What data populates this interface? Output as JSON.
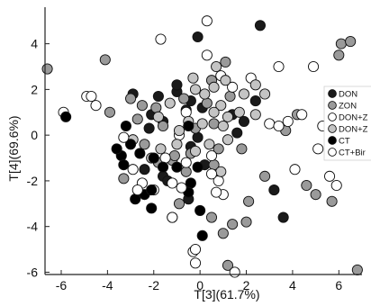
{
  "chart_data": {
    "type": "scatter",
    "xlabel": "T[3](61.7%)",
    "ylabel": "T[4](69.6%)",
    "xlim": [
      -6.7,
      7
    ],
    "ylim": [
      -6.1,
      5.6
    ],
    "xticks": [
      -6,
      -4,
      -2,
      0,
      2,
      4,
      6
    ],
    "yticks": [
      -6,
      -4,
      -2,
      0,
      2,
      4
    ],
    "grid": false,
    "legend_position": "right",
    "colors": {
      "DON": "#1a1a1a",
      "ZON": "#9a9a9a",
      "DON+Z_light": "#ffffff",
      "DON+Z_gray": "#c4c4c4",
      "CT": "#000000",
      "CT+Bir": "#ffffff"
    },
    "series": [
      {
        "name": "DON",
        "color": "#1a1a1a",
        "points": [
          [
            -2.9,
            1.8
          ],
          [
            -1.8,
            1.7
          ],
          [
            -0.4,
            1.5
          ],
          [
            -2.1,
            0.9
          ],
          [
            -1.6,
            0.6
          ],
          [
            -0.6,
            1.1
          ],
          [
            2.4,
            1.5
          ],
          [
            1.9,
            0.6
          ],
          [
            1.4,
            0.9
          ],
          [
            -1.0,
            1.9
          ],
          [
            -2.2,
            0.3
          ],
          [
            -0.1,
            4.3
          ],
          [
            -1.0,
            2.2
          ],
          [
            0.1,
            1.2
          ],
          [
            1.6,
            0.1
          ],
          [
            -0.1,
            -0.1
          ],
          [
            0.2,
            -1.3
          ],
          [
            -1.6,
            -1.8
          ],
          [
            -2.4,
            -1.5
          ],
          [
            -0.4,
            -0.5
          ],
          [
            3.2,
            -2.4
          ],
          [
            -1.4,
            -2.0
          ],
          [
            3.6,
            -3.6
          ],
          [
            -0.5,
            -2.8
          ],
          [
            2.6,
            4.8
          ]
        ]
      },
      {
        "name": "ZON",
        "color": "#9a9a9a",
        "points": [
          [
            -6.6,
            2.9
          ],
          [
            -4.1,
            3.3
          ],
          [
            -3.9,
            1.0
          ],
          [
            -3.0,
            1.6
          ],
          [
            -2.5,
            1.3
          ],
          [
            -1.9,
            1.2
          ],
          [
            -2.7,
            0.7
          ],
          [
            -1.6,
            0.4
          ],
          [
            -2.4,
            -0.4
          ],
          [
            -1.2,
            -1.1
          ],
          [
            0.3,
            1.4
          ],
          [
            0.5,
            2.4
          ],
          [
            1.3,
            1.7
          ],
          [
            1.1,
            3.2
          ],
          [
            0.6,
            0.5
          ],
          [
            -0.2,
            0.3
          ],
          [
            -0.7,
            1.6
          ],
          [
            1.8,
            -0.6
          ],
          [
            2.1,
            -2.9
          ],
          [
            4.2,
            0.9
          ],
          [
            4.6,
            -2.2
          ],
          [
            5.0,
            -2.6
          ],
          [
            5.7,
            -2.9
          ],
          [
            6.1,
            4.0
          ],
          [
            6.5,
            4.1
          ],
          [
            6.0,
            3.5
          ],
          [
            2.8,
            -1.8
          ],
          [
            0.5,
            -3.6
          ],
          [
            -0.6,
            -1.6
          ],
          [
            0.6,
            -1.3
          ],
          [
            -1.8,
            -1.2
          ],
          [
            -0.9,
            -3.0
          ],
          [
            -3.3,
            -1.9
          ],
          [
            -1.1,
            -0.9
          ],
          [
            -0.4,
            -0.8
          ],
          [
            0.8,
            -0.6
          ],
          [
            2.0,
            -3.8
          ],
          [
            1.4,
            -3.9
          ],
          [
            3.7,
            0.2
          ],
          [
            6.8,
            -5.9
          ],
          [
            1.2,
            -5.7
          ],
          [
            1.0,
            -4.3
          ]
        ]
      },
      {
        "name": "DON+Z_light",
        "color": "#ffffff",
        "points": [
          [
            -5.9,
            1.0
          ],
          [
            -4.9,
            1.7
          ],
          [
            -1.7,
            4.2
          ],
          [
            -0.6,
            1.0
          ],
          [
            0.3,
            5.0
          ],
          [
            0.3,
            3.5
          ],
          [
            0.9,
            2.6
          ],
          [
            1.4,
            2.1
          ],
          [
            2.2,
            2.5
          ],
          [
            3.4,
            3.0
          ],
          [
            3.8,
            0.6
          ],
          [
            4.4,
            0.9
          ],
          [
            5.1,
            -0.6
          ],
          [
            3.0,
            0.5
          ],
          [
            3.4,
            0.4
          ],
          [
            -2.0,
            -2.4
          ],
          [
            -1.2,
            -3.6
          ],
          [
            -0.6,
            -1.2
          ],
          [
            0.8,
            -2.0
          ],
          [
            -0.2,
            -5.6
          ],
          [
            -0.3,
            -5.1
          ],
          [
            1.5,
            -6.0
          ],
          [
            5.6,
            -1.8
          ],
          [
            5.3,
            0.4
          ],
          [
            4.9,
            3.0
          ],
          [
            -2.5,
            -2.1
          ],
          [
            -1.5,
            -1.0
          ],
          [
            -0.9,
            0.0
          ],
          [
            0.5,
            -0.9
          ],
          [
            4.1,
            -1.5
          ],
          [
            5.9,
            -2.2
          ]
        ]
      },
      {
        "name": "DON+Z_gray",
        "color": "#c4c4c4",
        "points": [
          [
            0.6,
            2.1
          ],
          [
            0.9,
            1.3
          ],
          [
            1.2,
            0.8
          ],
          [
            0.2,
            1.8
          ],
          [
            -0.3,
            2.5
          ],
          [
            0.7,
            3.0
          ],
          [
            -0.9,
            0.2
          ],
          [
            1.7,
            1.0
          ],
          [
            2.4,
            0.9
          ],
          [
            -1.7,
            -0.6
          ],
          [
            -2.1,
            -1.0
          ],
          [
            -1.0,
            -0.4
          ],
          [
            0.4,
            -0.4
          ],
          [
            1.2,
            -0.2
          ],
          [
            -0.5,
            0.6
          ],
          [
            -1.3,
            1.4
          ],
          [
            0.9,
            -1.6
          ],
          [
            -0.2,
            -0.7
          ],
          [
            2.8,
            1.8
          ],
          [
            0.1,
            0.5
          ],
          [
            -0.2,
            2.0
          ],
          [
            0.6,
            1.0
          ],
          [
            1.1,
            2.4
          ],
          [
            1.9,
            1.8
          ],
          [
            2.4,
            2.2
          ],
          [
            -2.9,
            -0.2
          ],
          [
            -1.8,
            0.8
          ],
          [
            1.0,
            0.4
          ]
        ]
      },
      {
        "name": "CT",
        "color": "#000000",
        "points": [
          [
            -5.8,
            0.8
          ],
          [
            -3.2,
            0.4
          ],
          [
            -3.4,
            -0.9
          ],
          [
            -3.3,
            -1.3
          ],
          [
            -2.6,
            -0.8
          ],
          [
            -2.8,
            -2.8
          ],
          [
            -2.4,
            -2.6
          ],
          [
            -2.1,
            -3.2
          ],
          [
            -2.0,
            -1.0
          ],
          [
            -1.6,
            -1.4
          ],
          [
            -1.0,
            -1.4
          ],
          [
            -0.4,
            -2.1
          ],
          [
            0.0,
            -3.3
          ],
          [
            0.1,
            -4.4
          ],
          [
            -0.1,
            -1.4
          ],
          [
            -0.5,
            -2.5
          ],
          [
            -3.0,
            -0.4
          ],
          [
            -3.6,
            -0.6
          ],
          [
            -2.1,
            -2.4
          ],
          [
            -0.5,
            0.4
          ]
        ]
      },
      {
        "name": "CT+Bir",
        "color": "#ffffff",
        "points": [
          [
            -4.7,
            1.7
          ],
          [
            -4.5,
            1.3
          ],
          [
            -3.3,
            -0.1
          ],
          [
            -2.9,
            -1.5
          ],
          [
            -2.7,
            -2.4
          ],
          [
            -1.2,
            -2.1
          ],
          [
            -0.8,
            -2.3
          ],
          [
            1.0,
            -2.6
          ],
          [
            -1.2,
            -3.6
          ],
          [
            0.7,
            -2.5
          ],
          [
            0.5,
            -1.7
          ],
          [
            -0.2,
            -5.0
          ]
        ]
      }
    ],
    "legend": [
      {
        "label": "DON",
        "color": "#1a1a1a"
      },
      {
        "label": "ZON",
        "color": "#9a9a9a"
      },
      {
        "label": "DON+Z",
        "color": "#ffffff"
      },
      {
        "label": "DON+Z",
        "color": "#c4c4c4"
      },
      {
        "label": "CT",
        "color": "#000000"
      },
      {
        "label": "CT+Bir",
        "color": "#ffffff"
      }
    ]
  }
}
